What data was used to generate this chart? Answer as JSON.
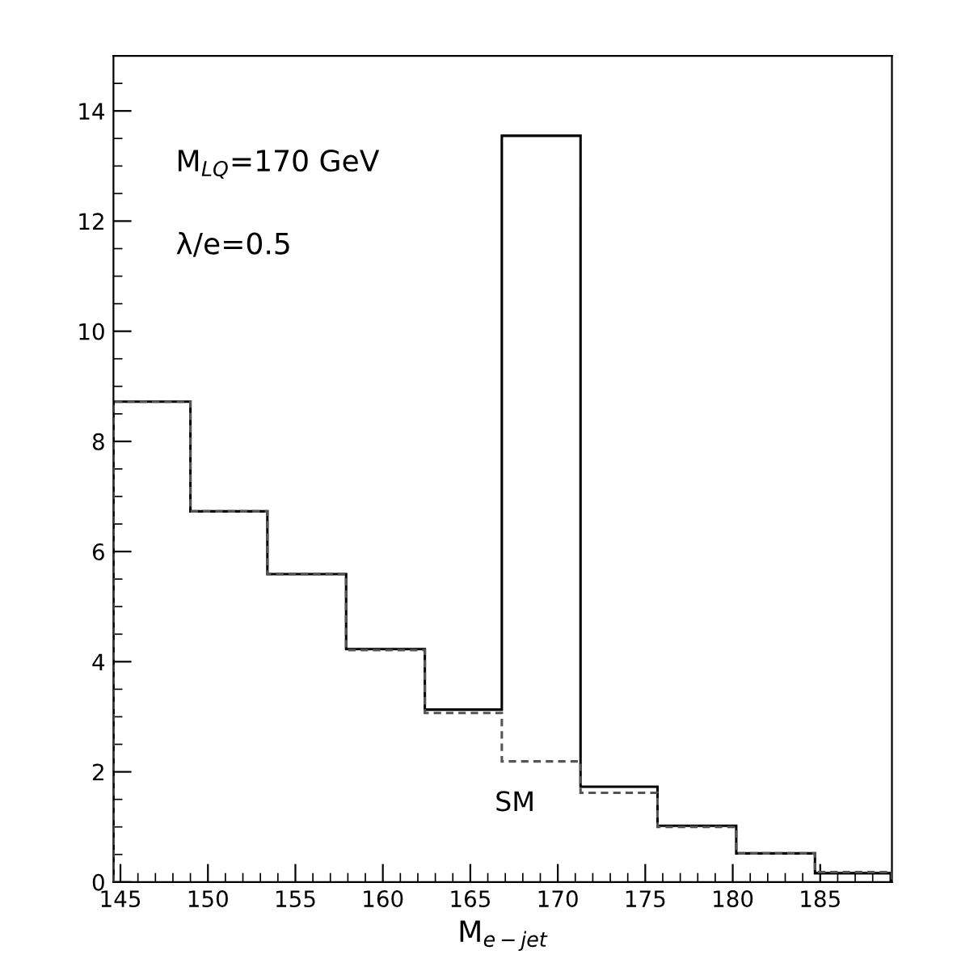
{
  "chart_data": {
    "type": "histogram",
    "xlabel": "M$_{e−jet}$",
    "bins": [
      144.6,
      149.0,
      153.4,
      157.9,
      162.4,
      166.8,
      171.3,
      175.7,
      180.2,
      184.7,
      189.1
    ],
    "series": [
      {
        "color": "#000000",
        "line_style": "solid",
        "values": [
          8.72,
          6.73,
          5.59,
          4.23,
          3.13,
          13.55,
          1.73,
          1.02,
          0.52,
          0.16
        ]
      },
      {
        "name": "SM",
        "color": "#555555",
        "line_style": "dashed",
        "values": [
          8.72,
          6.73,
          5.59,
          4.21,
          3.07,
          2.19,
          1.62,
          1.0,
          0.52,
          0.18
        ]
      }
    ],
    "annotations": [
      "M$_{LQ}$=170 GeV",
      "λ/e=0.5"
    ],
    "xlim": [
      144.6,
      189.1
    ],
    "ylim": [
      0,
      15
    ],
    "xticks": [
      145,
      150,
      155,
      160,
      165,
      170,
      175,
      180,
      185
    ],
    "yticks": [
      0,
      2,
      4,
      6,
      8,
      10,
      12,
      14
    ],
    "grid": false,
    "legend": false
  }
}
